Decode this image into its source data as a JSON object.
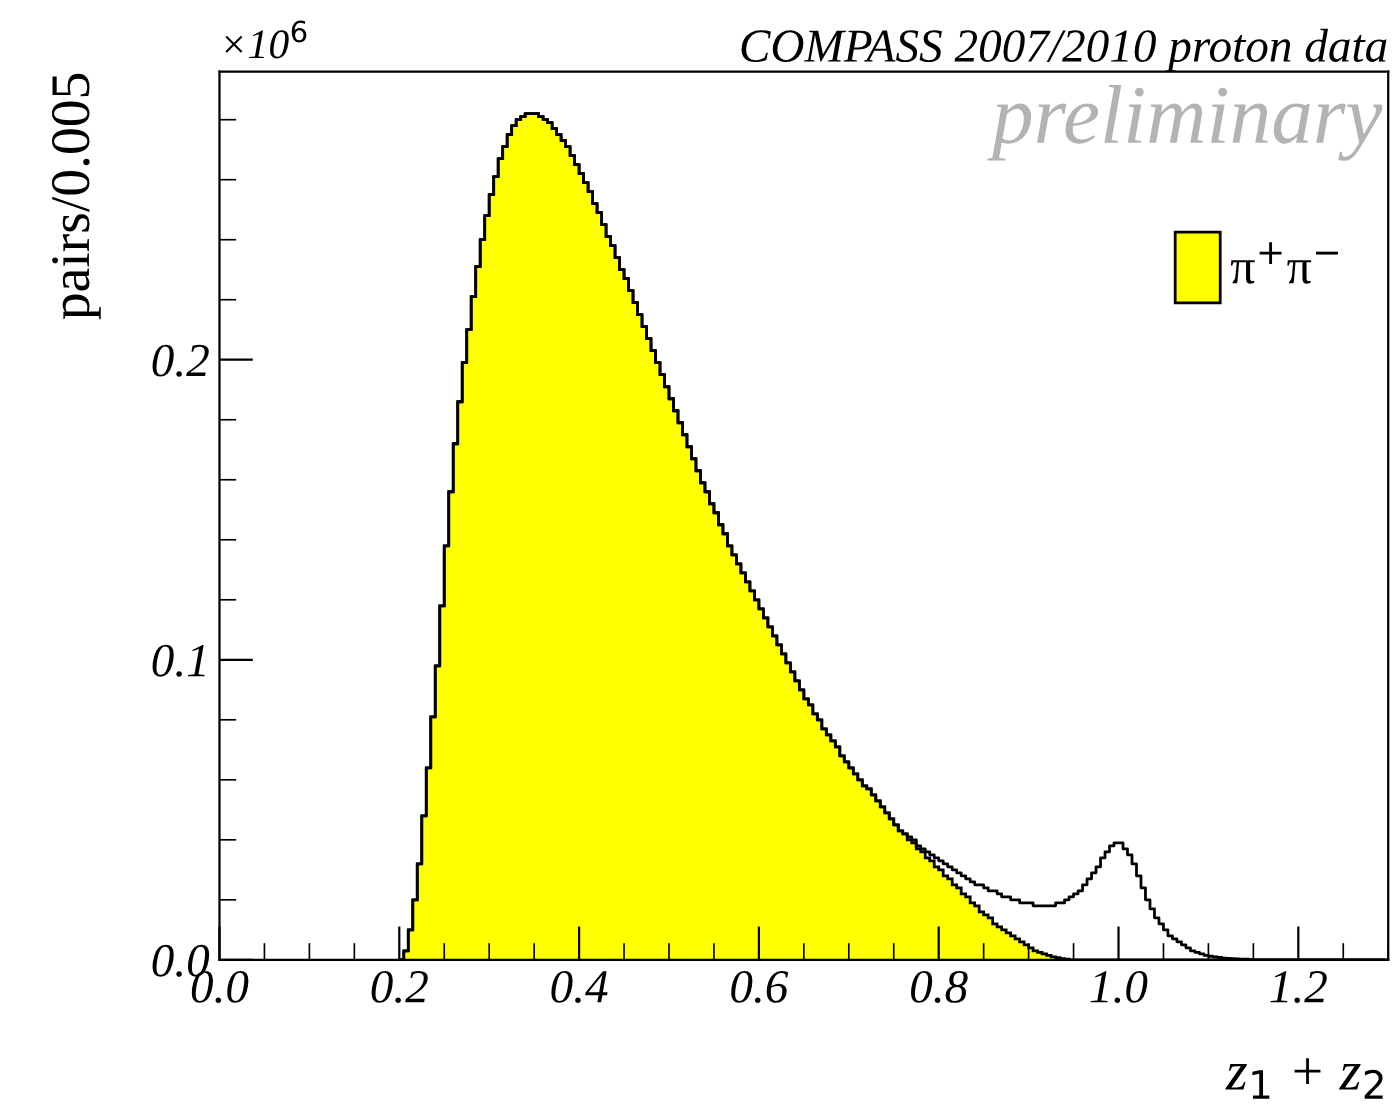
{
  "chart_data": {
    "type": "histogram",
    "title": "COMPASS 2007/2010 proton data",
    "xlabel": "z$_{1}$ + z$_{2}$",
    "ylabel": "pairs/0.005",
    "annotations": [
      "×10$^{6}$",
      "preliminary"
    ],
    "bins": [
      0.2,
      0.205,
      0.21,
      0.215,
      0.22,
      0.225,
      0.23,
      0.235,
      0.24,
      0.245,
      0.25,
      0.255,
      0.26,
      0.265,
      0.27,
      0.275,
      0.28,
      0.285,
      0.29,
      0.295,
      0.3,
      0.305,
      0.31,
      0.315,
      0.32,
      0.325,
      0.33,
      0.335,
      0.34,
      0.345,
      0.35,
      0.355,
      0.36,
      0.365,
      0.37,
      0.375,
      0.38,
      0.385,
      0.39,
      0.395,
      0.4,
      0.405,
      0.41,
      0.415,
      0.42,
      0.425,
      0.43,
      0.435,
      0.44,
      0.445,
      0.45,
      0.455,
      0.46,
      0.465,
      0.47,
      0.475,
      0.48,
      0.485,
      0.49,
      0.495,
      0.5,
      0.505,
      0.51,
      0.515,
      0.52,
      0.525,
      0.53,
      0.535,
      0.54,
      0.545,
      0.55,
      0.555,
      0.56,
      0.565,
      0.57,
      0.575,
      0.58,
      0.585,
      0.59,
      0.595,
      0.6,
      0.605,
      0.61,
      0.615,
      0.62,
      0.625,
      0.63,
      0.635,
      0.64,
      0.645,
      0.65,
      0.655,
      0.66,
      0.665,
      0.67,
      0.675,
      0.68,
      0.685,
      0.69,
      0.695,
      0.7,
      0.705,
      0.71,
      0.715,
      0.72,
      0.725,
      0.73,
      0.735,
      0.74,
      0.745,
      0.75,
      0.755,
      0.76,
      0.765,
      0.77,
      0.775,
      0.78,
      0.785,
      0.79,
      0.795,
      0.8,
      0.805,
      0.81,
      0.815,
      0.82,
      0.825,
      0.83,
      0.835,
      0.84,
      0.845,
      0.85,
      0.855,
      0.86,
      0.865,
      0.87,
      0.875,
      0.88,
      0.885,
      0.89,
      0.895,
      0.9,
      0.905,
      0.91,
      0.915,
      0.92,
      0.925,
      0.93,
      0.935,
      0.94,
      0.945,
      0.95,
      0.955,
      0.96,
      0.965,
      0.97,
      0.975,
      0.98,
      0.985,
      0.99,
      0.995,
      1.0,
      1.005,
      1.01,
      1.015,
      1.02,
      1.025,
      1.03,
      1.035,
      1.04,
      1.045,
      1.05,
      1.055,
      1.06,
      1.065,
      1.07,
      1.075,
      1.08,
      1.085,
      1.09,
      1.095,
      1.1,
      1.105,
      1.11,
      1.115,
      1.12,
      1.125,
      1.13,
      1.135,
      1.14,
      1.145,
      1.15,
      1.155,
      1.16,
      1.165,
      1.17,
      1.175,
      1.18,
      1.185,
      1.19,
      1.195,
      1.2,
      1.205,
      1.21,
      1.215,
      1.22,
      1.225,
      1.23,
      1.235,
      1.24,
      1.245,
      1.25,
      1.255,
      1.26,
      1.265,
      1.27,
      1.275,
      1.28,
      1.285,
      1.29,
      1.295,
      1.3
    ],
    "series": [
      {
        "name": "π$^{+}$π$^{−}$",
        "color": "#ffff00",
        "values": [
          0,
          0.003,
          0.01,
          0.02,
          0.032,
          0.048,
          0.064,
          0.081,
          0.098,
          0.118,
          0.138,
          0.156,
          0.172,
          0.186,
          0.199,
          0.21,
          0.221,
          0.231,
          0.24,
          0.248,
          0.255,
          0.261,
          0.267,
          0.271,
          0.275,
          0.278,
          0.28,
          0.281,
          0.282,
          0.282,
          0.282,
          0.281,
          0.28,
          0.279,
          0.277,
          0.275,
          0.273,
          0.271,
          0.268,
          0.265,
          0.262,
          0.259,
          0.256,
          0.252,
          0.249,
          0.245,
          0.241,
          0.238,
          0.234,
          0.23,
          0.227,
          0.223,
          0.219,
          0.215,
          0.211,
          0.207,
          0.203,
          0.199,
          0.195,
          0.191,
          0.187,
          0.183,
          0.179,
          0.175,
          0.171,
          0.167,
          0.163,
          0.159,
          0.156,
          0.152,
          0.149,
          0.145,
          0.142,
          0.138,
          0.135,
          0.132,
          0.129,
          0.126,
          0.123,
          0.12,
          0.117,
          0.114,
          0.111,
          0.108,
          0.105,
          0.102,
          0.099,
          0.096,
          0.093,
          0.09,
          0.087,
          0.085,
          0.082,
          0.08,
          0.077,
          0.075,
          0.073,
          0.071,
          0.068,
          0.066,
          0.064,
          0.062,
          0.06,
          0.058,
          0.057,
          0.055,
          0.053,
          0.051,
          0.049,
          0.047,
          0.045,
          0.043,
          0.042,
          0.04,
          0.039,
          0.037,
          0.036,
          0.034,
          0.033,
          0.031,
          0.03,
          0.028,
          0.027,
          0.025,
          0.024,
          0.022,
          0.021,
          0.019,
          0.018,
          0.016,
          0.015,
          0.014,
          0.012,
          0.011,
          0.01,
          0.009,
          0.008,
          0.007,
          0.006,
          0.005,
          0.004,
          0.003,
          0.0025,
          0.002,
          0.0015,
          0.001,
          0.0007,
          0.0004,
          0.0002,
          0,
          0,
          0,
          0,
          0,
          0,
          0,
          0,
          0,
          0,
          0,
          0,
          0,
          0,
          0,
          0,
          0,
          0,
          0,
          0,
          0,
          0,
          0,
          0,
          0,
          0,
          0,
          0,
          0,
          0,
          0,
          0,
          0,
          0,
          0,
          0,
          0,
          0,
          0,
          0,
          0,
          0,
          0,
          0,
          0,
          0,
          0,
          0,
          0,
          0,
          0,
          0,
          0,
          0,
          0,
          0,
          0,
          0,
          0,
          0,
          0,
          0,
          0,
          0,
          0,
          0,
          0,
          0,
          0,
          0,
          0
        ]
      },
      {
        "type": "step",
        "color": "#000000",
        "x": [
          0.2,
          0.205,
          0.21,
          0.215,
          0.22,
          0.225,
          0.23,
          0.235,
          0.24,
          0.245,
          0.25,
          0.255,
          0.26,
          0.265,
          0.27,
          0.275,
          0.28,
          0.285,
          0.29,
          0.295,
          0.3,
          0.305,
          0.31,
          0.315,
          0.32,
          0.325,
          0.33,
          0.335,
          0.34,
          0.345,
          0.35,
          0.355,
          0.36,
          0.365,
          0.37,
          0.375,
          0.38,
          0.385,
          0.39,
          0.395,
          0.4,
          0.405,
          0.41,
          0.415,
          0.42,
          0.425,
          0.43,
          0.435,
          0.44,
          0.445,
          0.45,
          0.455,
          0.46,
          0.465,
          0.47,
          0.475,
          0.48,
          0.485,
          0.49,
          0.495,
          0.5,
          0.505,
          0.51,
          0.515,
          0.52,
          0.525,
          0.53,
          0.535,
          0.54,
          0.545,
          0.55,
          0.555,
          0.56,
          0.565,
          0.57,
          0.575,
          0.58,
          0.585,
          0.59,
          0.595,
          0.6,
          0.605,
          0.61,
          0.615,
          0.62,
          0.625,
          0.63,
          0.635,
          0.64,
          0.645,
          0.65,
          0.655,
          0.66,
          0.665,
          0.67,
          0.675,
          0.68,
          0.685,
          0.69,
          0.695,
          0.7,
          0.705,
          0.71,
          0.715,
          0.72,
          0.725,
          0.73,
          0.735,
          0.74,
          0.745,
          0.75,
          0.755,
          0.76,
          0.765,
          0.77,
          0.775,
          0.78,
          0.785,
          0.79,
          0.795,
          0.8,
          0.805,
          0.81,
          0.815,
          0.82,
          0.825,
          0.83,
          0.835,
          0.84,
          0.845,
          0.85,
          0.855,
          0.86,
          0.865,
          0.87,
          0.875,
          0.88,
          0.885,
          0.89,
          0.895,
          0.9,
          0.905,
          0.91,
          0.915,
          0.92,
          0.925,
          0.93,
          0.935,
          0.94,
          0.945,
          0.95,
          0.955,
          0.96,
          0.965,
          0.97,
          0.975,
          0.98,
          0.985,
          0.99,
          0.995,
          1.0,
          1.005,
          1.01,
          1.015,
          1.02,
          1.025,
          1.03,
          1.035,
          1.04,
          1.045,
          1.05,
          1.055,
          1.06,
          1.065,
          1.07,
          1.075,
          1.08,
          1.085,
          1.09,
          1.095,
          1.1,
          1.105,
          1.11,
          1.115,
          1.12,
          1.125,
          1.13,
          1.135,
          1.14,
          1.145,
          1.15,
          1.155,
          1.16,
          1.165,
          1.17,
          1.175,
          1.18,
          1.185,
          1.19,
          1.195,
          1.2,
          1.205,
          1.21,
          1.215,
          1.22,
          1.225,
          1.23,
          1.235,
          1.24,
          1.245,
          1.25,
          1.255,
          1.26,
          1.265,
          1.27,
          1.275,
          1.28,
          1.285,
          1.29,
          1.295
        ],
        "values": [
          0,
          0.003,
          0.01,
          0.02,
          0.032,
          0.048,
          0.064,
          0.081,
          0.098,
          0.118,
          0.138,
          0.156,
          0.172,
          0.186,
          0.199,
          0.21,
          0.221,
          0.231,
          0.24,
          0.248,
          0.255,
          0.261,
          0.267,
          0.271,
          0.275,
          0.278,
          0.28,
          0.281,
          0.282,
          0.282,
          0.282,
          0.281,
          0.28,
          0.279,
          0.277,
          0.275,
          0.273,
          0.271,
          0.268,
          0.265,
          0.262,
          0.259,
          0.256,
          0.252,
          0.249,
          0.245,
          0.241,
          0.238,
          0.234,
          0.23,
          0.227,
          0.223,
          0.219,
          0.215,
          0.211,
          0.207,
          0.203,
          0.199,
          0.195,
          0.191,
          0.187,
          0.183,
          0.179,
          0.175,
          0.171,
          0.167,
          0.163,
          0.159,
          0.156,
          0.152,
          0.149,
          0.145,
          0.142,
          0.138,
          0.135,
          0.132,
          0.129,
          0.126,
          0.123,
          0.12,
          0.117,
          0.114,
          0.111,
          0.108,
          0.105,
          0.102,
          0.099,
          0.096,
          0.093,
          0.09,
          0.087,
          0.085,
          0.082,
          0.08,
          0.077,
          0.075,
          0.073,
          0.071,
          0.068,
          0.066,
          0.064,
          0.062,
          0.06,
          0.058,
          0.057,
          0.055,
          0.053,
          0.051,
          0.049,
          0.047,
          0.045,
          0.043,
          0.042,
          0.041,
          0.04,
          0.038,
          0.037,
          0.036,
          0.035,
          0.034,
          0.033,
          0.032,
          0.031,
          0.03,
          0.029,
          0.028,
          0.027,
          0.026,
          0.025,
          0.025,
          0.024,
          0.023,
          0.023,
          0.022,
          0.021,
          0.021,
          0.02,
          0.02,
          0.019,
          0.019,
          0.019,
          0.018,
          0.018,
          0.018,
          0.018,
          0.018,
          0.019,
          0.019,
          0.02,
          0.021,
          0.022,
          0.023,
          0.025,
          0.027,
          0.029,
          0.031,
          0.034,
          0.036,
          0.038,
          0.039,
          0.039,
          0.037,
          0.035,
          0.032,
          0.028,
          0.024,
          0.02,
          0.017,
          0.014,
          0.012,
          0.01,
          0.008,
          0.007,
          0.006,
          0.005,
          0.004,
          0.003,
          0.0025,
          0.002,
          0.0015,
          0.0012,
          0.001,
          0.0008,
          0.0006,
          0.0005,
          0.0004,
          0.0003,
          0.0002,
          0.0002,
          0.0001,
          0,
          0,
          0,
          0,
          0,
          0,
          0,
          0,
          0,
          0,
          0,
          0,
          0,
          0,
          0,
          0,
          0,
          0,
          0,
          0,
          0,
          0,
          0,
          0,
          0,
          0,
          0,
          0,
          0,
          0
        ]
      }
    ],
    "xlim": [
      0,
      1.3
    ],
    "xticks": [
      {
        "value": 0,
        "label": "0.0"
      },
      {
        "value": 0.2,
        "label": "0.2"
      },
      {
        "value": 0.4,
        "label": "0.4"
      },
      {
        "value": 0.6,
        "label": "0.6"
      },
      {
        "value": 0.8,
        "label": "0.8"
      },
      {
        "value": 1.0,
        "label": "1.0"
      },
      {
        "value": 1.2,
        "label": "1.2"
      }
    ],
    "ylim": [
      0,
      0.296
    ],
    "yticks": [
      {
        "value": 0,
        "label": "0.0"
      },
      0.1,
      0.2
    ],
    "grid": false,
    "legend": "top right"
  }
}
